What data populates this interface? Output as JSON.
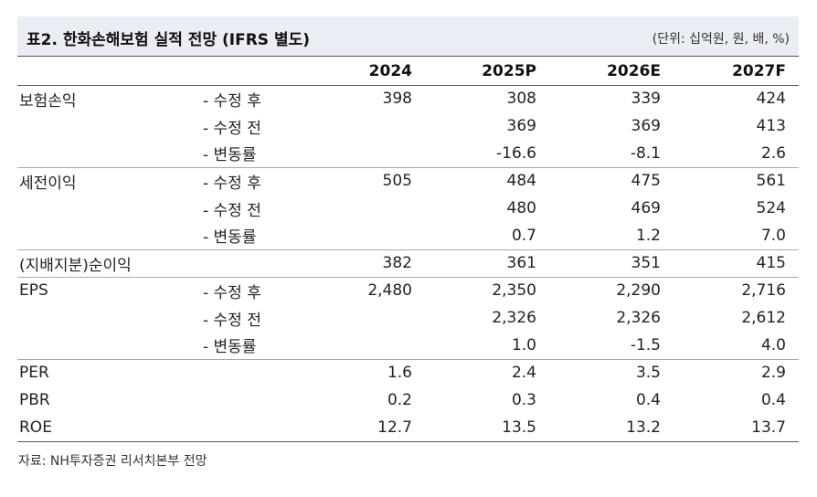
{
  "title": "표2. 한화손해보험 실적 전망 (IFRS 별도)",
  "unit": "(단위: 십억원, 원, 배, %)",
  "columns": [
    "2024",
    "2025P",
    "2026E",
    "2027F"
  ],
  "rows": [
    {
      "name": "보험손익",
      "sub": "- 수정 후",
      "values": [
        "398",
        "308",
        "339",
        "424"
      ]
    },
    {
      "name": "",
      "sub": "- 수정 전",
      "values": [
        "",
        "369",
        "369",
        "413"
      ]
    },
    {
      "name": "",
      "sub": "- 변동률",
      "values": [
        "",
        "-16.6",
        "-8.1",
        "2.6"
      ]
    },
    {
      "name": "세전이익",
      "sub": "- 수정 후",
      "values": [
        "505",
        "484",
        "475",
        "561"
      ]
    },
    {
      "name": "",
      "sub": "- 수정 전",
      "values": [
        "",
        "480",
        "469",
        "524"
      ]
    },
    {
      "name": "",
      "sub": "- 변동률",
      "values": [
        "",
        "0.7",
        "1.2",
        "7.0"
      ]
    },
    {
      "name": "(지배지분)순이익",
      "sub": "",
      "values": [
        "382",
        "361",
        "351",
        "415"
      ]
    },
    {
      "name": "EPS",
      "sub": "- 수정 후",
      "values": [
        "2,480",
        "2,350",
        "2,290",
        "2,716"
      ]
    },
    {
      "name": "",
      "sub": "- 수정 전",
      "values": [
        "",
        "2,326",
        "2,326",
        "2,612"
      ]
    },
    {
      "name": "",
      "sub": "- 변동률",
      "values": [
        "",
        "1.0",
        "-1.5",
        "4.0"
      ]
    },
    {
      "name": "PER",
      "sub": "",
      "values": [
        "1.6",
        "2.4",
        "3.5",
        "2.9"
      ]
    },
    {
      "name": "PBR",
      "sub": "",
      "values": [
        "0.2",
        "0.3",
        "0.4",
        "0.4"
      ]
    },
    {
      "name": "ROE",
      "sub": "",
      "values": [
        "12.7",
        "13.5",
        "13.2",
        "13.7"
      ]
    }
  ],
  "source": "자료: NH투자증권 리서치본부 전망"
}
